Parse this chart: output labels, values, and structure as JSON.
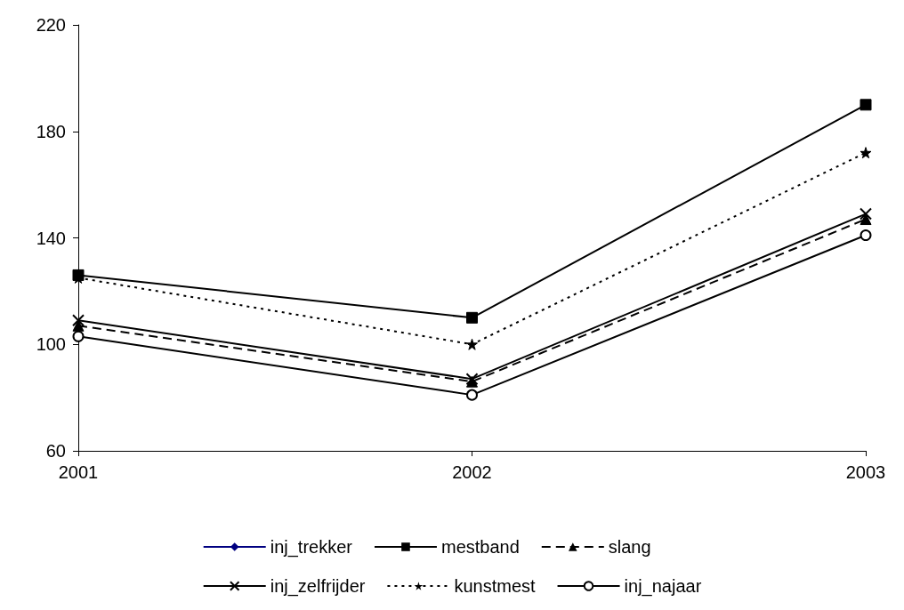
{
  "chart_data": {
    "type": "line",
    "categories": [
      "2001",
      "2002",
      "2003"
    ],
    "ylim": [
      60,
      220
    ],
    "yticks": [
      60,
      100,
      140,
      180,
      220
    ],
    "grid": false,
    "legend": "bottom",
    "series": [
      {
        "name": "inj_trekker",
        "color": "#000080",
        "marker": "diamond",
        "line_style": "solid",
        "values": [
          null,
          null,
          null
        ]
      },
      {
        "name": "mestband",
        "color": "#000000",
        "marker": "square",
        "line_style": "solid",
        "values": [
          126,
          110,
          190
        ]
      },
      {
        "name": "slang",
        "color": "#000000",
        "marker": "triangle",
        "line_style": "dashed",
        "values": [
          107,
          86,
          147
        ]
      },
      {
        "name": "inj_zelfrijder",
        "color": "#000000",
        "marker": "cross",
        "line_style": "solid",
        "values": [
          109,
          87,
          149
        ]
      },
      {
        "name": "kunstmest",
        "color": "#000000",
        "marker": "star",
        "line_style": "dotted",
        "values": [
          125,
          100,
          172
        ]
      },
      {
        "name": "inj_najaar",
        "color": "#000000",
        "marker": "circle",
        "line_style": "solid",
        "values": [
          103,
          81,
          141
        ]
      }
    ]
  }
}
